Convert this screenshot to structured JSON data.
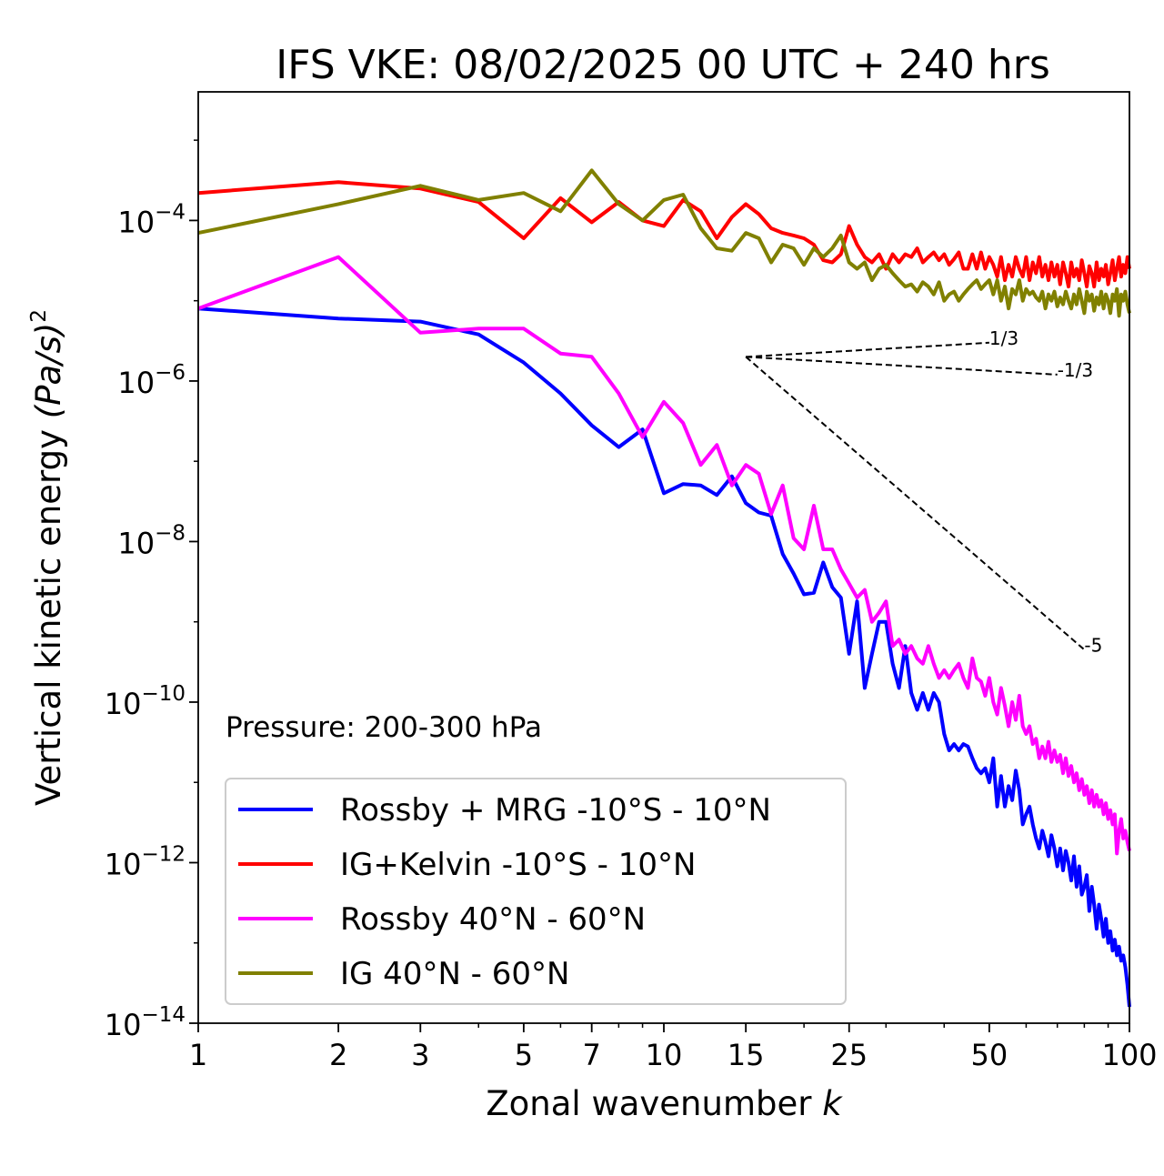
{
  "chart_data": {
    "type": "line",
    "title": "IFS VKE: 08/02/2025 00 UTC + 240 hrs",
    "xlabel": "Zonal wavenumber",
    "xlabel_var": "k",
    "ylabel": "Vertical kinetic energy",
    "ylabel_units": "(Pa/s)",
    "ylabel_units_exp": "2",
    "x_scale": "log",
    "y_scale": "log",
    "xlim": [
      1,
      100
    ],
    "ylim": [
      1e-14,
      0.004
    ],
    "x_ticks": [
      1,
      2,
      3,
      5,
      7,
      10,
      15,
      25,
      50,
      100
    ],
    "x_tick_labels": [
      "1",
      "2",
      "3",
      "5",
      "7",
      "10",
      "15",
      "25",
      "50",
      "100"
    ],
    "y_ticks": [
      1e-14,
      1e-12,
      1e-10,
      1e-08,
      1e-06,
      0.0001
    ],
    "y_tick_base": "10",
    "y_tick_exps": [
      "−14",
      "−12",
      "−10",
      "−8",
      "−6",
      "−4"
    ],
    "grid": false,
    "legend_position": "lower-left",
    "annotation": "Pressure: 200-300 hPa",
    "reference_slopes": [
      {
        "label": "1/3",
        "x0": 15,
        "y0": 2e-06,
        "x1": 50,
        "y1": 3e-06
      },
      {
        "label": "-1/3",
        "x0": 15,
        "y0": 2e-06,
        "x1": 70,
        "y1": 1.2e-06
      },
      {
        "label": "-5",
        "x0": 15,
        "y0": 2e-06,
        "x1": 80,
        "y1": 4.5e-10
      }
    ],
    "series": [
      {
        "name": "Rossby + MRG -10°S - 10°N",
        "color": "#0000ff",
        "x": [
          1,
          2,
          3,
          4,
          5,
          6,
          7,
          8,
          9,
          10,
          11,
          12,
          13,
          14,
          15,
          16,
          17,
          18,
          19,
          20,
          21,
          22,
          23,
          24,
          25,
          26,
          27,
          28,
          29,
          30,
          31,
          32,
          33,
          34,
          35,
          36,
          37,
          38,
          39,
          40,
          41,
          42,
          43,
          44,
          45,
          46,
          47,
          48,
          49,
          50,
          51,
          52,
          53,
          54,
          55,
          56,
          57,
          58,
          59,
          60,
          61,
          62,
          63,
          64,
          65,
          66,
          67,
          68,
          69,
          70,
          71,
          72,
          73,
          74,
          75,
          76,
          77,
          78,
          79,
          80,
          81,
          82,
          83,
          84,
          85,
          86,
          87,
          88,
          89,
          90,
          91,
          92,
          93,
          94,
          95,
          96,
          97,
          98,
          99,
          100
        ],
        "y": [
          8e-06,
          6e-06,
          5.5e-06,
          3.8e-06,
          1.7e-06,
          7e-07,
          2.8e-07,
          1.5e-07,
          2.5e-07,
          4e-08,
          5.2e-08,
          5e-08,
          3.8e-08,
          6.5e-08,
          3e-08,
          2.3e-08,
          2.1e-08,
          7e-09,
          4e-09,
          2.2e-09,
          2.3e-09,
          5.5e-09,
          2.7e-09,
          2e-09,
          4e-10,
          1.8e-09,
          1.5e-10,
          4e-10,
          1e-09,
          1e-09,
          3e-10,
          1.5e-10,
          5e-10,
          1.3e-10,
          8e-11,
          1.3e-10,
          8e-11,
          1.3e-10,
          1e-10,
          4e-11,
          2.5e-11,
          3e-11,
          2.5e-11,
          3e-11,
          2.8e-11,
          2e-11,
          1.5e-11,
          1.3e-11,
          1.5e-11,
          1e-11,
          2e-11,
          5e-12,
          1.2e-11,
          5e-12,
          9e-12,
          6e-12,
          1.4e-11,
          8e-12,
          3e-12,
          4e-12,
          5e-12,
          3e-12,
          2e-12,
          1.5e-12,
          2.5e-12,
          1.8e-12,
          1.2e-12,
          2.2e-12,
          1.5e-12,
          9e-13,
          1.5e-12,
          8e-13,
          1.4e-12,
          1e-12,
          6e-13,
          1.2e-12,
          5e-13,
          9e-13,
          4e-13,
          5e-13,
          7e-13,
          2.5e-13,
          5e-13,
          3e-13,
          1.5e-13,
          3e-13,
          2e-13,
          1.2e-13,
          2e-13,
          1e-13,
          1.4e-13,
          8e-14,
          1.1e-13,
          7e-14,
          9e-14,
          6e-14,
          7e-14,
          5e-14,
          3e-14,
          1.6e-14
        ]
      },
      {
        "name": "IG+Kelvin -10°S - 10°N",
        "color": "#ff0000",
        "x": [
          1,
          2,
          3,
          4,
          5,
          6,
          7,
          8,
          9,
          10,
          11,
          12,
          13,
          14,
          15,
          16,
          17,
          18,
          19,
          20,
          21,
          22,
          23,
          24,
          25,
          26,
          27,
          28,
          29,
          30,
          31,
          32,
          33,
          34,
          35,
          36,
          37,
          38,
          39,
          40,
          41,
          42,
          43,
          44,
          45,
          46,
          47,
          48,
          49,
          50,
          51,
          52,
          53,
          54,
          55,
          56,
          57,
          58,
          59,
          60,
          61,
          62,
          63,
          64,
          65,
          66,
          67,
          68,
          69,
          70,
          71,
          72,
          73,
          74,
          75,
          76,
          77,
          78,
          79,
          80,
          81,
          82,
          83,
          84,
          85,
          86,
          87,
          88,
          89,
          90,
          91,
          92,
          93,
          94,
          95,
          96,
          97,
          98,
          99,
          100
        ],
        "y": [
          0.00022,
          0.0003,
          0.00025,
          0.00017,
          6e-05,
          0.00019,
          9.5e-05,
          0.00017,
          0.0001,
          8.5e-05,
          0.00018,
          0.00013,
          6e-05,
          0.00011,
          0.00016,
          0.00012,
          8e-05,
          7e-05,
          6.5e-05,
          6e-05,
          5e-05,
          3.2e-05,
          3e-05,
          3.8e-05,
          8.5e-05,
          5e-05,
          3.5e-05,
          3e-05,
          3.8e-05,
          2.5e-05,
          3.8e-05,
          3e-05,
          3.8e-05,
          3.5e-05,
          4.5e-05,
          3e-05,
          3.5e-05,
          4e-05,
          3.2e-05,
          3.8e-05,
          2.8e-05,
          3.3e-05,
          4e-05,
          2.5e-05,
          2.5e-05,
          3.8e-05,
          2.5e-05,
          4e-05,
          2.5e-05,
          3.5e-05,
          2.8e-05,
          2e-05,
          3.5e-05,
          1.8e-05,
          2.8e-05,
          2e-05,
          3.5e-05,
          2.5e-05,
          2e-05,
          3.5e-05,
          1.8e-05,
          3e-05,
          2.2e-05,
          3.5e-05,
          2e-05,
          2.8e-05,
          1.8e-05,
          3e-05,
          2e-05,
          2.8e-05,
          1.6e-05,
          3e-05,
          2.2e-05,
          1.5e-05,
          3e-05,
          2e-05,
          2.5e-05,
          1.8e-05,
          3.2e-05,
          2.2e-05,
          1.5e-05,
          2.7e-05,
          2.2e-05,
          1.5e-05,
          3e-05,
          1.8e-05,
          2.5e-05,
          2e-05,
          2.8e-05,
          1.6e-05,
          2.2e-05,
          3.2e-05,
          1.8e-05,
          2.5e-05,
          3.5e-05,
          2e-05,
          2.8e-05,
          2.2e-05,
          3.5e-05,
          2.5e-05
        ]
      },
      {
        "name": "Rossby 40°N - 60°N",
        "color": "#ff00ff",
        "x": [
          1,
          2,
          3,
          4,
          5,
          6,
          7,
          8,
          9,
          10,
          11,
          12,
          13,
          14,
          15,
          16,
          17,
          18,
          19,
          20,
          21,
          22,
          23,
          24,
          25,
          26,
          27,
          28,
          29,
          30,
          31,
          32,
          33,
          34,
          35,
          36,
          37,
          38,
          39,
          40,
          41,
          42,
          43,
          44,
          45,
          46,
          47,
          48,
          49,
          50,
          51,
          52,
          53,
          54,
          55,
          56,
          57,
          58,
          59,
          60,
          61,
          62,
          63,
          64,
          65,
          66,
          67,
          68,
          69,
          70,
          71,
          72,
          73,
          74,
          75,
          76,
          77,
          78,
          79,
          80,
          81,
          82,
          83,
          84,
          85,
          86,
          87,
          88,
          89,
          90,
          91,
          92,
          93,
          94,
          95,
          96,
          97,
          98,
          99,
          100
        ],
        "y": [
          8e-06,
          3.5e-05,
          4e-06,
          4.5e-06,
          4.5e-06,
          2.2e-06,
          2e-06,
          7e-07,
          2e-07,
          5.5e-07,
          3e-07,
          9e-08,
          1.6e-07,
          5e-08,
          9e-08,
          7e-08,
          2.2e-08,
          5e-08,
          1.1e-08,
          8e-09,
          2.8e-08,
          8e-09,
          8e-09,
          4.5e-09,
          3e-09,
          2e-09,
          2.5e-09,
          1e-09,
          1.3e-09,
          1.8e-09,
          5e-10,
          6e-10,
          4e-10,
          5e-10,
          3.5e-10,
          3e-10,
          5e-10,
          3e-10,
          2e-10,
          2.5e-10,
          2e-10,
          2.5e-10,
          3e-10,
          2e-10,
          1.5e-10,
          3.5e-10,
          2e-10,
          1.8e-10,
          1.2e-10,
          2e-10,
          1e-10,
          7e-11,
          1.5e-10,
          9e-11,
          5e-11,
          1e-10,
          6e-11,
          1.2e-10,
          5e-11,
          4e-11,
          5e-11,
          3e-11,
          3.5e-11,
          2e-11,
          2.8e-11,
          2e-11,
          3.2e-11,
          1.8e-11,
          2.5e-11,
          1.8e-11,
          2.2e-11,
          1.3e-11,
          2e-11,
          1.2e-11,
          1.6e-11,
          1e-11,
          1.3e-11,
          8e-12,
          1.1e-11,
          7e-12,
          9e-12,
          5.5e-12,
          8e-12,
          5e-12,
          7e-12,
          5e-12,
          6e-12,
          4e-12,
          5.5e-12,
          3.5e-12,
          4.5e-12,
          3e-12,
          4e-12,
          1.3e-12,
          2.5e-12,
          3.5e-12,
          2e-12,
          2.5e-12,
          1.8e-12,
          1.4e-12
        ]
      },
      {
        "name": "IG 40°N - 60°N",
        "color": "#808000",
        "x": [
          1,
          2,
          3,
          4,
          5,
          6,
          7,
          8,
          9,
          10,
          11,
          12,
          13,
          14,
          15,
          16,
          17,
          18,
          19,
          20,
          21,
          22,
          23,
          24,
          25,
          26,
          27,
          28,
          29,
          30,
          31,
          32,
          33,
          34,
          35,
          36,
          37,
          38,
          39,
          40,
          41,
          42,
          43,
          44,
          45,
          46,
          47,
          48,
          49,
          50,
          51,
          52,
          53,
          54,
          55,
          56,
          57,
          58,
          59,
          60,
          61,
          62,
          63,
          64,
          65,
          66,
          67,
          68,
          69,
          70,
          71,
          72,
          73,
          74,
          75,
          76,
          77,
          78,
          79,
          80,
          81,
          82,
          83,
          84,
          85,
          86,
          87,
          88,
          89,
          90,
          91,
          92,
          93,
          94,
          95,
          96,
          97,
          98,
          99,
          100
        ],
        "y": [
          7e-05,
          0.00016,
          0.00027,
          0.00018,
          0.00022,
          0.00013,
          0.00042,
          0.00016,
          0.0001,
          0.00018,
          0.00021,
          8e-05,
          4.5e-05,
          4.2e-05,
          7e-05,
          6e-05,
          3e-05,
          5e-05,
          4.5e-05,
          2.8e-05,
          4.5e-05,
          3.5e-05,
          4.5e-05,
          6.5e-05,
          3e-05,
          2.5e-05,
          3e-05,
          1.8e-05,
          2.5e-05,
          2.8e-05,
          2.2e-05,
          1.8e-05,
          1.5e-05,
          1.6e-05,
          1.3e-05,
          1.7e-05,
          1.5e-05,
          1.2e-05,
          1.7e-05,
          1e-05,
          1.2e-05,
          1.3e-05,
          1e-05,
          1.2e-05,
          1.4e-05,
          1.6e-05,
          1.8e-05,
          1.4e-05,
          1.6e-05,
          1.8e-05,
          1.2e-05,
          1.8e-05,
          1e-05,
          1.5e-05,
          8e-06,
          1.4e-05,
          1.2e-05,
          1.8e-05,
          1e-05,
          1.4e-05,
          1.2e-05,
          1.3e-05,
          1.1e-05,
          1e-05,
          1.3e-05,
          8e-06,
          1.2e-05,
          1e-05,
          1.3e-05,
          8.5e-06,
          1.1e-05,
          9e-06,
          1.3e-05,
          1e-05,
          8e-06,
          1.2e-05,
          9e-06,
          1.4e-05,
          1e-05,
          7e-06,
          1.3e-05,
          1e-05,
          1.2e-05,
          7.5e-06,
          1.1e-05,
          9e-06,
          1.3e-05,
          8e-06,
          1.2e-05,
          1e-05,
          7e-06,
          1.2e-05,
          1e-05,
          1.4e-05,
          6.5e-06,
          1.2e-05,
          1e-05,
          1.3e-05,
          9e-06,
          7e-06
        ]
      }
    ]
  }
}
